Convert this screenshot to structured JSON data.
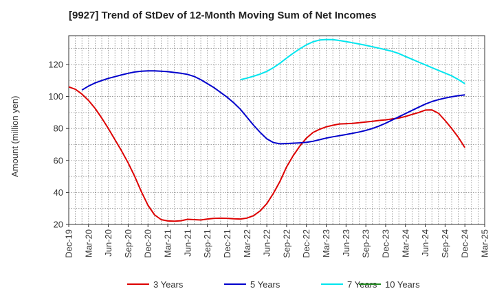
{
  "chart_data": {
    "type": "line",
    "title": "[9927]  Trend of StDev of 12-Month Moving Sum of Net Incomes",
    "xlabel": "",
    "ylabel": "Amount (million yen)",
    "ylim": [
      20,
      138
    ],
    "yticks": [
      20,
      40,
      60,
      80,
      100,
      120
    ],
    "x_tick_labels": [
      "Dec-19",
      "Mar-20",
      "Jun-20",
      "Sep-20",
      "Dec-20",
      "Mar-21",
      "Jun-21",
      "Sep-21",
      "Dec-21",
      "Mar-22",
      "Jun-22",
      "Sep-22",
      "Dec-22",
      "Mar-23",
      "Jun-23",
      "Sep-23",
      "Dec-23",
      "Mar-24",
      "Jun-24",
      "Sep-24",
      "Dec-24",
      "Mar-25"
    ],
    "grid": true,
    "legend_position": "bottom",
    "series": [
      {
        "name": "3 Years",
        "color": "#dd0000",
        "points": [
          [
            "Dec-19",
            106
          ],
          [
            "Jan-20",
            104.5
          ],
          [
            "Feb-20",
            101.5
          ],
          [
            "Mar-20",
            97.5
          ],
          [
            "Apr-20",
            92.5
          ],
          [
            "May-20",
            86.5
          ],
          [
            "Jun-20",
            80
          ],
          [
            "Jul-20",
            73
          ],
          [
            "Aug-20",
            66
          ],
          [
            "Sep-20",
            58.5
          ],
          [
            "Oct-20",
            50
          ],
          [
            "Nov-20",
            40.5
          ],
          [
            "Dec-20",
            32
          ],
          [
            "Jan-21",
            26
          ],
          [
            "Feb-21",
            23
          ],
          [
            "Mar-21",
            22.2
          ],
          [
            "Apr-21",
            22
          ],
          [
            "May-21",
            22.3
          ],
          [
            "Jun-21",
            23.2
          ],
          [
            "Jul-21",
            23
          ],
          [
            "Aug-21",
            22.8
          ],
          [
            "Sep-21",
            23.4
          ],
          [
            "Oct-21",
            23.8
          ],
          [
            "Nov-21",
            23.9
          ],
          [
            "Dec-21",
            23.8
          ],
          [
            "Jan-22",
            23.5
          ],
          [
            "Feb-22",
            23.4
          ],
          [
            "Mar-22",
            24
          ],
          [
            "Apr-22",
            25.5
          ],
          [
            "May-22",
            28.5
          ],
          [
            "Jun-22",
            33
          ],
          [
            "Jul-22",
            39.5
          ],
          [
            "Aug-22",
            47
          ],
          [
            "Sep-22",
            56
          ],
          [
            "Oct-22",
            63
          ],
          [
            "Nov-22",
            69
          ],
          [
            "Dec-22",
            74
          ],
          [
            "Jan-23",
            77.5
          ],
          [
            "Feb-23",
            79.5
          ],
          [
            "Mar-23",
            81
          ],
          [
            "Apr-23",
            82
          ],
          [
            "May-23",
            82.8
          ],
          [
            "Jun-23",
            83
          ],
          [
            "Jul-23",
            83.2
          ],
          [
            "Aug-23",
            83.6
          ],
          [
            "Sep-23",
            84
          ],
          [
            "Oct-23",
            84.5
          ],
          [
            "Nov-23",
            85
          ],
          [
            "Dec-23",
            85.4
          ],
          [
            "Jan-24",
            86
          ],
          [
            "Feb-24",
            86.5
          ],
          [
            "Mar-24",
            87.5
          ],
          [
            "Apr-24",
            88.8
          ],
          [
            "May-24",
            90
          ],
          [
            "Jun-24",
            91.5
          ],
          [
            "Jul-24",
            91.6
          ],
          [
            "Aug-24",
            89.5
          ],
          [
            "Sep-24",
            85
          ],
          [
            "Oct-24",
            80
          ],
          [
            "Nov-24",
            74.5
          ],
          [
            "Dec-24",
            68
          ]
        ]
      },
      {
        "name": "5 Years",
        "color": "#0000cc",
        "points": [
          [
            "Feb-20",
            104
          ],
          [
            "Mar-20",
            106.5
          ],
          [
            "Apr-20",
            108.5
          ],
          [
            "May-20",
            110
          ],
          [
            "Jun-20",
            111.3
          ],
          [
            "Jul-20",
            112.4
          ],
          [
            "Aug-20",
            113.5
          ],
          [
            "Sep-20",
            114.5
          ],
          [
            "Oct-20",
            115.3
          ],
          [
            "Nov-20",
            115.8
          ],
          [
            "Dec-20",
            116
          ],
          [
            "Jan-21",
            116
          ],
          [
            "Feb-21",
            115.8
          ],
          [
            "Mar-21",
            115.5
          ],
          [
            "Apr-21",
            115
          ],
          [
            "May-21",
            114.5
          ],
          [
            "Jun-21",
            113.8
          ],
          [
            "Jul-21",
            112.5
          ],
          [
            "Aug-21",
            110.5
          ],
          [
            "Sep-21",
            108
          ],
          [
            "Oct-21",
            105.5
          ],
          [
            "Nov-21",
            102.5
          ],
          [
            "Dec-21",
            99.5
          ],
          [
            "Jan-22",
            96
          ],
          [
            "Feb-22",
            92
          ],
          [
            "Mar-22",
            87
          ],
          [
            "Apr-22",
            82
          ],
          [
            "May-22",
            77.5
          ],
          [
            "Jun-22",
            73.5
          ],
          [
            "Jul-22",
            71.2
          ],
          [
            "Aug-22",
            70.4
          ],
          [
            "Sep-22",
            70.6
          ],
          [
            "Oct-22",
            70.8
          ],
          [
            "Nov-22",
            71
          ],
          [
            "Dec-22",
            71.3
          ],
          [
            "Jan-23",
            72
          ],
          [
            "Feb-23",
            73
          ],
          [
            "Mar-23",
            74
          ],
          [
            "Apr-23",
            74.8
          ],
          [
            "May-23",
            75.5
          ],
          [
            "Jun-23",
            76.2
          ],
          [
            "Jul-23",
            77
          ],
          [
            "Aug-23",
            77.8
          ],
          [
            "Sep-23",
            78.8
          ],
          [
            "Oct-23",
            80
          ],
          [
            "Nov-23",
            81.5
          ],
          [
            "Dec-23",
            83.3
          ],
          [
            "Jan-24",
            85.3
          ],
          [
            "Feb-24",
            87.3
          ],
          [
            "Mar-24",
            89.3
          ],
          [
            "Apr-24",
            91.3
          ],
          [
            "May-24",
            93.3
          ],
          [
            "Jun-24",
            95.2
          ],
          [
            "Jul-24",
            96.8
          ],
          [
            "Aug-24",
            98
          ],
          [
            "Sep-24",
            99
          ],
          [
            "Oct-24",
            99.8
          ],
          [
            "Nov-24",
            100.5
          ],
          [
            "Dec-24",
            101
          ]
        ]
      },
      {
        "name": "7 Years",
        "color": "#00e5ee",
        "points": [
          [
            "Feb-22",
            110.5
          ],
          [
            "Mar-22",
            111.5
          ],
          [
            "Apr-22",
            112.7
          ],
          [
            "May-22",
            114
          ],
          [
            "Jun-22",
            115.7
          ],
          [
            "Jul-22",
            118
          ],
          [
            "Aug-22",
            120.8
          ],
          [
            "Sep-22",
            124
          ],
          [
            "Oct-22",
            127
          ],
          [
            "Nov-22",
            129.8
          ],
          [
            "Dec-22",
            132.3
          ],
          [
            "Jan-23",
            134.2
          ],
          [
            "Feb-23",
            135.3
          ],
          [
            "Mar-23",
            135.6
          ],
          [
            "Apr-23",
            135.5
          ],
          [
            "May-23",
            135
          ],
          [
            "Jun-23",
            134.3
          ],
          [
            "Jul-23",
            133.6
          ],
          [
            "Aug-23",
            132.8
          ],
          [
            "Sep-23",
            132
          ],
          [
            "Oct-23",
            131.1
          ],
          [
            "Nov-23",
            130.2
          ],
          [
            "Dec-23",
            129.2
          ],
          [
            "Jan-24",
            128.2
          ],
          [
            "Feb-24",
            126.8
          ],
          [
            "Mar-24",
            125
          ],
          [
            "Apr-24",
            123.3
          ],
          [
            "May-24",
            121.5
          ],
          [
            "Jun-24",
            119.8
          ],
          [
            "Jul-24",
            118
          ],
          [
            "Aug-24",
            116.3
          ],
          [
            "Sep-24",
            114.6
          ],
          [
            "Oct-24",
            112.9
          ],
          [
            "Nov-24",
            110.6
          ],
          [
            "Dec-24",
            108
          ]
        ]
      },
      {
        "name": "10 Years",
        "color": "#228b22",
        "points": []
      }
    ]
  }
}
